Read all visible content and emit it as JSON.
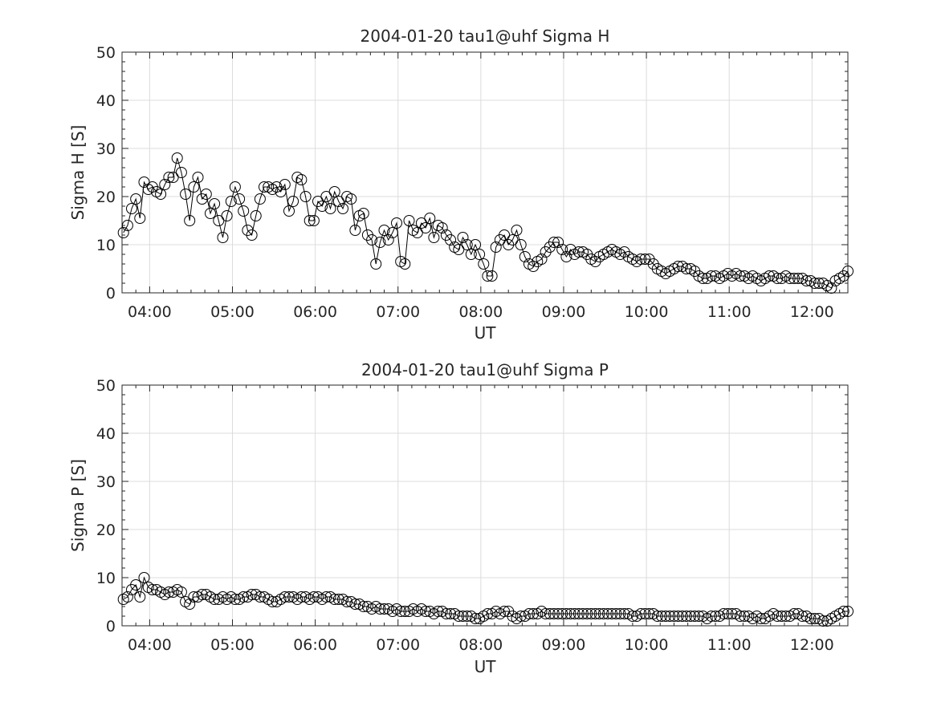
{
  "chart_data": [
    {
      "type": "line",
      "marker": "circle",
      "title": "2004-01-20  tau1@uhf Sigma H",
      "xlabel": "UT",
      "ylabel": "Sigma H [S]",
      "xlim": [
        "03:40",
        "12:26"
      ],
      "ylim": [
        0,
        50
      ],
      "xticks": [
        "04:00",
        "05:00",
        "06:00",
        "07:00",
        "08:00",
        "09:00",
        "10:00",
        "11:00",
        "12:00"
      ],
      "yticks": [
        "0",
        "10",
        "20",
        "30",
        "40",
        "50"
      ],
      "grid": true,
      "start": "03:41",
      "step_minutes": 3,
      "color": "#000000",
      "values": [
        12.5,
        14,
        17.5,
        19.5,
        15.5,
        23,
        21.5,
        22,
        21,
        20.5,
        22.5,
        24,
        24,
        28,
        25,
        20.5,
        15,
        22,
        24,
        19.5,
        20.5,
        16.5,
        18.5,
        15,
        11.5,
        16,
        19,
        22,
        19.5,
        17,
        13,
        12,
        16,
        19.5,
        22,
        22,
        21.5,
        22,
        21,
        22.5,
        17,
        19,
        24,
        23.5,
        20,
        15,
        15,
        19,
        18,
        20,
        17.5,
        21,
        19,
        17.5,
        20,
        19.5,
        13,
        16,
        16.5,
        12,
        11,
        6,
        10.5,
        13,
        11,
        12.5,
        14.5,
        6.5,
        6,
        15,
        13,
        12.5,
        14.5,
        13.5,
        15.5,
        11.5,
        14,
        13.5,
        12,
        11,
        9.5,
        9,
        11.5,
        10,
        8,
        10,
        8,
        6,
        3.5,
        3.5,
        9.5,
        11,
        12,
        10,
        11,
        13,
        10,
        7.5,
        6,
        5.5,
        6.5,
        7,
        8.5,
        9.5,
        10.5,
        10.5,
        9,
        7.5,
        9,
        8,
        8.5,
        8.5,
        8,
        7,
        6.5,
        7.5,
        8,
        8.5,
        9,
        8.5,
        8,
        8.5,
        7.5,
        7,
        6.5,
        7,
        7,
        7,
        6,
        5,
        4.5,
        4,
        4.5,
        5,
        5.5,
        5.5,
        5,
        5,
        4.5,
        3.5,
        3,
        3,
        3.5,
        3.5,
        3,
        3.5,
        4,
        3.5,
        4,
        3.5,
        3.5,
        3,
        3.5,
        3,
        2.5,
        3,
        3.5,
        3.5,
        3,
        3,
        3.5,
        3,
        3,
        3,
        3,
        2.5,
        2.5,
        2,
        2,
        2,
        1.5,
        1,
        2.5,
        3,
        3.5,
        4.5
      ]
    },
    {
      "type": "line",
      "marker": "circle",
      "title": "2004-01-20  tau1@uhf Sigma P",
      "xlabel": "UT",
      "ylabel": "Sigma P [S]",
      "xlim": [
        "03:40",
        "12:26"
      ],
      "ylim": [
        0,
        50
      ],
      "xticks": [
        "04:00",
        "05:00",
        "06:00",
        "07:00",
        "08:00",
        "09:00",
        "10:00",
        "11:00",
        "12:00"
      ],
      "yticks": [
        "0",
        "10",
        "20",
        "30",
        "40",
        "50"
      ],
      "grid": true,
      "start": "03:41",
      "step_minutes": 3,
      "color": "#000000",
      "values": [
        5.5,
        6,
        7.5,
        8.5,
        6,
        10,
        8,
        7.5,
        7.5,
        7,
        6.5,
        7,
        7,
        7.5,
        7,
        5,
        4.5,
        6,
        6,
        6.5,
        6.5,
        6,
        5.5,
        5.5,
        6,
        5.5,
        6,
        5.5,
        5.5,
        6,
        6,
        6.5,
        6.5,
        6,
        6,
        5.5,
        5,
        5,
        5.5,
        6,
        6,
        6,
        5.5,
        6,
        6,
        5.5,
        6,
        6,
        5.5,
        6,
        6,
        5.5,
        5.5,
        5.5,
        5,
        5,
        4.5,
        4.5,
        4,
        4,
        3.5,
        4,
        3.5,
        3.5,
        3.5,
        3,
        3.5,
        3,
        3,
        3,
        3.5,
        3,
        3.5,
        3,
        3,
        2.5,
        3,
        3,
        2.5,
        2.5,
        2.5,
        2,
        2,
        2,
        2,
        1.5,
        1.5,
        2,
        2.5,
        2.5,
        3,
        2.5,
        3,
        3,
        2,
        1.5,
        2,
        2,
        2.5,
        2.5,
        2.5,
        3,
        2.5,
        2.5,
        2.5,
        2.5,
        2.5,
        2.5,
        2.5,
        2.5,
        2.5,
        2.5,
        2.5,
        2.5,
        2.5,
        2.5,
        2.5,
        2.5,
        2.5,
        2.5,
        2.5,
        2.5,
        2.5,
        2,
        2,
        2.5,
        2.5,
        2.5,
        2.5,
        2,
        2,
        2,
        2,
        2,
        2,
        2,
        2,
        2,
        2,
        2,
        2,
        1.5,
        2,
        2,
        2,
        2.5,
        2.5,
        2.5,
        2.5,
        2,
        2,
        2,
        1.5,
        2,
        1.5,
        1.5,
        2,
        2.5,
        2,
        2,
        2,
        2,
        2.5,
        2.5,
        2,
        2,
        1.5,
        1.5,
        1.5,
        1,
        1,
        1.5,
        2,
        2.5,
        3,
        3
      ]
    }
  ]
}
